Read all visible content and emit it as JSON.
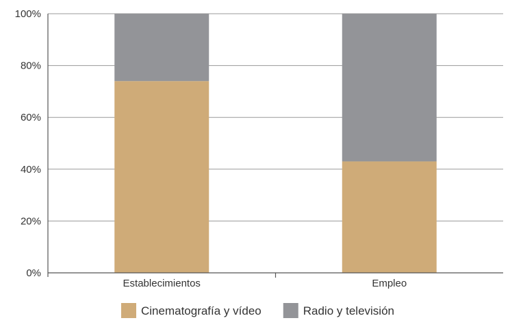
{
  "chart_data": {
    "type": "bar",
    "stacked": true,
    "categories": [
      "Establecimientos",
      "Empleo"
    ],
    "series": [
      {
        "name": "Cinematografía y vídeo",
        "values": [
          74,
          43
        ]
      },
      {
        "name": "Radio y televisión",
        "values": [
          26,
          57
        ]
      }
    ],
    "ylim": [
      0,
      100
    ],
    "yticks": [
      "0%",
      "20%",
      "40%",
      "60%",
      "80%",
      "100%"
    ],
    "grid": true,
    "legend": "bottom",
    "colors": {
      "Cinematografía y vídeo": "#cfab78",
      "Radio y televisión": "#939498",
      "gridline": "#9a9a9a",
      "axis": "#555555"
    }
  }
}
